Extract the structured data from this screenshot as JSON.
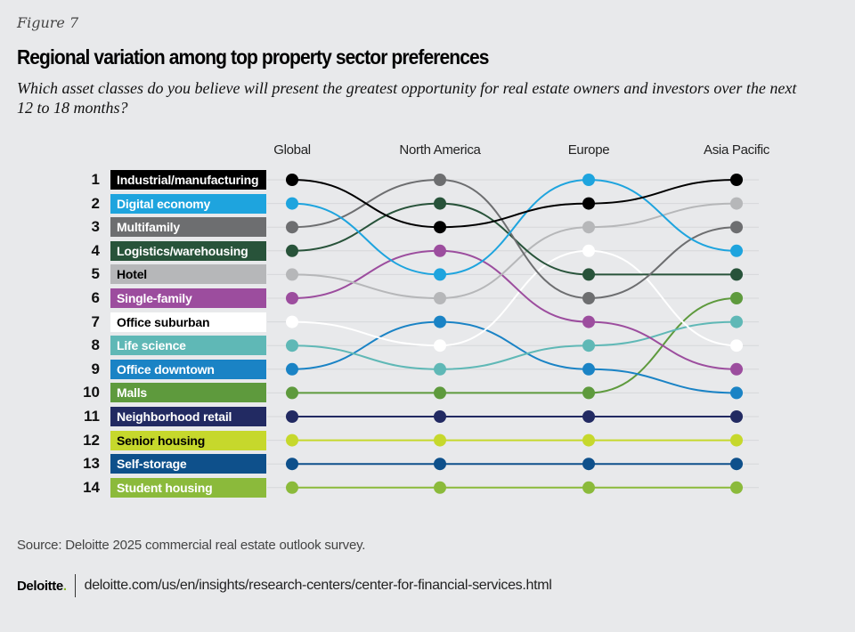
{
  "figure_label": "Figure 7",
  "title": "Regional variation among top property sector preferences",
  "subtitle": "Which asset classes do you believe will present the greatest opportunity for real estate owners and investors over the next 12 to 18 months?",
  "chart_data": {
    "type": "bump",
    "title": "Regional variation among top property sector preferences",
    "subtitle": "Which asset classes do you believe will present the greatest opportunity for real estate owners and investors over the next 12 to 18 months?",
    "x": [
      "Global",
      "North America",
      "Europe",
      "Asia Pacific"
    ],
    "rank_labels": [
      "1",
      "2",
      "3",
      "4",
      "5",
      "6",
      "7",
      "8",
      "9",
      "10",
      "11",
      "12",
      "13",
      "14"
    ],
    "y_axis": "rank (1 = top)",
    "series": [
      {
        "name": "Industrial/manufacturing",
        "color": "#000000",
        "text_color": "#ffffff",
        "ranks": [
          1,
          3,
          2,
          1
        ]
      },
      {
        "name": "Digital economy",
        "color": "#1ea4de",
        "text_color": "#ffffff",
        "ranks": [
          2,
          5,
          1,
          4
        ]
      },
      {
        "name": "Multifamily",
        "color": "#6d6e70",
        "text_color": "#ffffff",
        "ranks": [
          3,
          1,
          6,
          3
        ]
      },
      {
        "name": "Logistics/warehousing",
        "color": "#28533a",
        "text_color": "#ffffff",
        "ranks": [
          4,
          2,
          5,
          5
        ]
      },
      {
        "name": "Hotel",
        "color": "#b6b7b9",
        "text_color": "#000000",
        "ranks": [
          5,
          6,
          3,
          2
        ]
      },
      {
        "name": "Single-family",
        "color": "#9c4d9e",
        "text_color": "#ffffff",
        "ranks": [
          6,
          4,
          7,
          9
        ]
      },
      {
        "name": "Office suburban",
        "color": "#ffffff",
        "text_color": "#000000",
        "ranks": [
          7,
          8,
          4,
          8
        ]
      },
      {
        "name": "Life science",
        "color": "#5fb8b6",
        "text_color": "#ffffff",
        "ranks": [
          8,
          9,
          8,
          7
        ]
      },
      {
        "name": "Office downtown",
        "color": "#1a83c5",
        "text_color": "#ffffff",
        "ranks": [
          9,
          7,
          9,
          10
        ]
      },
      {
        "name": "Malls",
        "color": "#5e9a3d",
        "text_color": "#ffffff",
        "ranks": [
          10,
          10,
          10,
          6
        ]
      },
      {
        "name": "Neighborhood retail",
        "color": "#222a62",
        "text_color": "#ffffff",
        "ranks": [
          11,
          11,
          11,
          11
        ]
      },
      {
        "name": "Senior housing",
        "color": "#c6d82c",
        "text_color": "#000000",
        "ranks": [
          12,
          12,
          12,
          12
        ]
      },
      {
        "name": "Self-storage",
        "color": "#0e508b",
        "text_color": "#ffffff",
        "ranks": [
          13,
          13,
          13,
          13
        ]
      },
      {
        "name": "Student housing",
        "color": "#8bba3b",
        "text_color": "#ffffff",
        "ranks": [
          14,
          14,
          14,
          14
        ]
      }
    ],
    "grid": true,
    "legend": "left"
  },
  "source": "Source: Deloitte 2025 commercial real estate outlook survey.",
  "footer": {
    "logo_text": "Deloitte",
    "logo_dot": ".",
    "url": "deloitte.com/us/en/insights/research-centers/center-for-financial-services.html"
  }
}
